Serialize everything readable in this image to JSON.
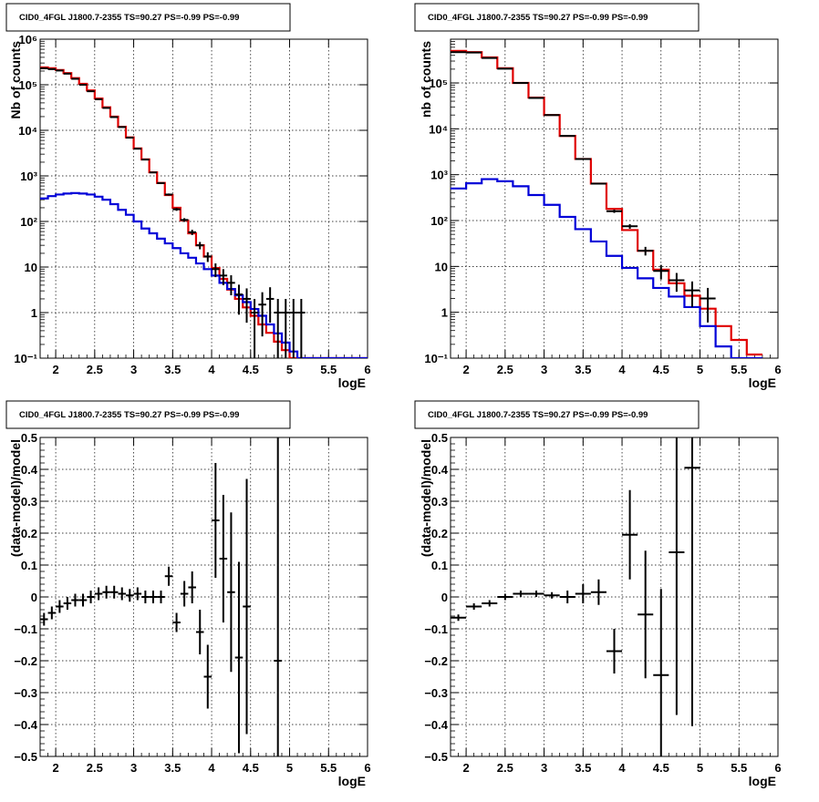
{
  "colors": {
    "data": "#000000",
    "total_model": "#e00000",
    "source_model": "#0000d8",
    "frame": "#000000",
    "grid": "#000000"
  },
  "chart_data": [
    {
      "type": "line",
      "title": "CID0_4FGL J1800.7-2355 TS=90.27 PS=-0.99 PS=-0.99",
      "xlabel": "logE",
      "ylabel": "Nb of counts",
      "xlim": [
        1.8,
        6
      ],
      "ylim": [
        0.1,
        1000000
      ],
      "yscale": "log",
      "grid": true,
      "x_ticks": [
        "2",
        "2.5",
        "3",
        "3.5",
        "4",
        "4.5",
        "5",
        "5.5",
        "6"
      ],
      "y_ticks": [
        "10⁻¹",
        "1",
        "10",
        "10²",
        "10³",
        "10⁴",
        "10⁵",
        "10⁶"
      ],
      "series": [
        {
          "kind": "step",
          "color": "#e00000",
          "x_edges": [
            1.8,
            1.9,
            2.0,
            2.1,
            2.2,
            2.3,
            2.4,
            2.5,
            2.6,
            2.7,
            2.8,
            2.9,
            3.0,
            3.1,
            3.2,
            3.3,
            3.4,
            3.5,
            3.6,
            3.7,
            3.8,
            3.9,
            4.0,
            4.1,
            4.2,
            4.3,
            4.4,
            4.5,
            4.6,
            4.7,
            4.8,
            4.9,
            5.0,
            5.1,
            5.2,
            5.3,
            5.4,
            5.5,
            5.6,
            5.7,
            5.8,
            5.9,
            6.0
          ],
          "values": [
            240000,
            230000,
            210000,
            180000,
            140000,
            105000,
            75000,
            50000,
            32000,
            20000,
            12000,
            7000,
            4000,
            2300,
            1200,
            700,
            380,
            200,
            105,
            55,
            30,
            17,
            9.5,
            5.5,
            3.2,
            2.0,
            1.3,
            0.85,
            0.55,
            0.36,
            0.23,
            0.15,
            0.1,
            0.1,
            0.1,
            0.1,
            0.1,
            0.1,
            0.1,
            0.1,
            0.1,
            0.1
          ]
        },
        {
          "kind": "step",
          "color": "#0000d8",
          "x_edges": [
            1.8,
            1.9,
            2.0,
            2.1,
            2.2,
            2.3,
            2.4,
            2.5,
            2.6,
            2.7,
            2.8,
            2.9,
            3.0,
            3.1,
            3.2,
            3.3,
            3.4,
            3.5,
            3.6,
            3.7,
            3.8,
            3.9,
            4.0,
            4.1,
            4.2,
            4.3,
            4.4,
            4.5,
            4.6,
            4.7,
            4.8,
            4.9,
            5.0,
            5.1,
            5.2,
            5.3,
            5.4,
            5.5,
            5.6,
            5.7,
            5.8,
            5.9,
            6.0
          ],
          "values": [
            320,
            360,
            390,
            410,
            420,
            410,
            390,
            350,
            300,
            240,
            180,
            140,
            100,
            70,
            55,
            42,
            33,
            26,
            20,
            16,
            12,
            9,
            6.5,
            4.5,
            3.3,
            2.4,
            1.7,
            1.2,
            0.85,
            0.55,
            0.35,
            0.22,
            0.14,
            0.1,
            0.1,
            0.1,
            0.1,
            0.1,
            0.1,
            0.1,
            0.1,
            0.1
          ]
        },
        {
          "kind": "points",
          "color": "#000000",
          "x": [
            1.85,
            1.95,
            2.05,
            2.15,
            2.25,
            2.35,
            2.45,
            2.55,
            2.65,
            2.75,
            2.85,
            2.95,
            3.05,
            3.15,
            3.25,
            3.35,
            3.45,
            3.55,
            3.65,
            3.75,
            3.85,
            3.95,
            4.05,
            4.15,
            4.25,
            4.35,
            4.45,
            4.55,
            4.65,
            4.75,
            4.85,
            4.95,
            5.05,
            5.15
          ],
          "y": [
            230000,
            220000,
            205000,
            175000,
            135000,
            100000,
            72000,
            48000,
            31000,
            19500,
            11800,
            6900,
            3950,
            2280,
            1190,
            695,
            390,
            185,
            108,
            58,
            30,
            17,
            9,
            6.5,
            4.5,
            2.5,
            2,
            1,
            1.5,
            2,
            1,
            1,
            1,
            1
          ],
          "xerr": 0.05,
          "yerr_low": [
            480,
            470,
            450,
            420,
            370,
            320,
            270,
            220,
            176,
            140,
            109,
            83,
            63,
            48,
            34,
            26,
            20,
            14,
            10,
            7.6,
            5.5,
            4.1,
            3,
            2.5,
            2.1,
            1.6,
            1.4,
            0.9,
            1.2,
            1.4,
            0.9,
            0.9,
            0.9,
            0.9
          ],
          "yerr_high": [
            480,
            470,
            450,
            420,
            370,
            320,
            270,
            220,
            176,
            140,
            109,
            83,
            63,
            48,
            34,
            26,
            20,
            14,
            10,
            7.6,
            5.5,
            4.1,
            3,
            2.5,
            2.1,
            1.6,
            1.4,
            1.0,
            1.3,
            1.6,
            1.0,
            1.0,
            1.0,
            1.0
          ]
        }
      ]
    },
    {
      "type": "line",
      "title": "CID0_4FGL J1800.7-2355 TS=90.27 PS=-0.99 PS=-0.99",
      "xlabel": "logE",
      "ylabel": "nb of counts",
      "xlim": [
        1.8,
        6
      ],
      "ylim": [
        0.1,
        900000
      ],
      "yscale": "log",
      "grid": true,
      "x_ticks": [
        "2",
        "2.5",
        "3",
        "3.5",
        "4",
        "4.5",
        "5",
        "5.5",
        "6"
      ],
      "y_ticks": [
        "10⁻¹",
        "1",
        "10",
        "10²",
        "10³",
        "10⁴",
        "10⁵"
      ],
      "series": [
        {
          "kind": "step",
          "color": "#e00000",
          "x_edges": [
            1.8,
            2.0,
            2.2,
            2.4,
            2.6,
            2.8,
            3.0,
            3.2,
            3.4,
            3.6,
            3.8,
            4.0,
            4.2,
            4.4,
            4.6,
            4.8,
            5.0,
            5.2,
            5.4,
            5.6,
            5.8
          ],
          "values": [
            500000,
            470000,
            360000,
            210000,
            100000,
            48000,
            20000,
            7000,
            2200,
            640,
            180,
            62,
            22,
            8.5,
            4.3,
            2.3,
            1.2,
            0.5,
            0.25,
            0.12
          ],
          "y_floor": 0.1
        },
        {
          "kind": "step",
          "color": "#0000d8",
          "x_edges": [
            1.8,
            2.0,
            2.2,
            2.4,
            2.6,
            2.8,
            3.0,
            3.2,
            3.4,
            3.6,
            3.8,
            4.0,
            4.2,
            4.4,
            4.6,
            4.8,
            5.0,
            5.2,
            5.4,
            5.6,
            5.8
          ],
          "values": [
            500,
            650,
            800,
            720,
            560,
            360,
            220,
            120,
            65,
            35,
            17,
            9.3,
            5.5,
            3.4,
            2.2,
            1.3,
            0.5,
            0.18,
            0.1,
            0.1
          ],
          "y_floor": 0.1
        },
        {
          "kind": "points",
          "color": "#000000",
          "x": [
            1.9,
            2.1,
            2.3,
            2.5,
            2.7,
            2.9,
            3.1,
            3.3,
            3.5,
            3.7,
            3.9,
            4.1,
            4.3,
            4.5,
            4.7,
            4.9,
            5.1
          ],
          "y": [
            470000,
            460000,
            350000,
            205000,
            100000,
            47000,
            20000,
            7000,
            2200,
            640,
            160,
            75,
            22,
            8,
            5,
            3,
            2
          ],
          "xerr": 0.1,
          "yerr_low": [
            690,
            680,
            590,
            450,
            320,
            220,
            140,
            84,
            47,
            25,
            13,
            8.7,
            4.7,
            2.8,
            2.2,
            1.7,
            1.4
          ],
          "yerr_high": [
            690,
            680,
            590,
            450,
            320,
            220,
            140,
            84,
            47,
            25,
            13,
            8.7,
            4.7,
            2.8,
            2.2,
            1.7,
            1.4
          ]
        }
      ]
    },
    {
      "type": "scatter",
      "title": "CID0_4FGL J1800.7-2355 TS=90.27 PS=-0.99 PS=-0.99",
      "xlabel": "logE",
      "ylabel": "(data-model)/model",
      "xlim": [
        1.8,
        6
      ],
      "ylim": [
        -0.5,
        0.5
      ],
      "grid": true,
      "x_ticks": [
        "2",
        "2.5",
        "3",
        "3.5",
        "4",
        "4.5",
        "5",
        "5.5",
        "6"
      ],
      "y_ticks": [
        "−0.5",
        "−0.4",
        "−0.3",
        "−0.2",
        "−0.1",
        "0",
        "0.1",
        "0.2",
        "0.3",
        "0.4",
        "0.5"
      ],
      "series": [
        {
          "kind": "points",
          "color": "#000000",
          "x": [
            1.85,
            1.95,
            2.05,
            2.15,
            2.25,
            2.35,
            2.45,
            2.55,
            2.65,
            2.75,
            2.85,
            2.95,
            3.05,
            3.15,
            3.25,
            3.35,
            3.45,
            3.55,
            3.65,
            3.75,
            3.85,
            3.95,
            4.05,
            4.15,
            4.25,
            4.35,
            4.45,
            4.85
          ],
          "y": [
            -0.07,
            -0.05,
            -0.03,
            -0.02,
            -0.01,
            -0.01,
            0.0,
            0.01,
            0.015,
            0.015,
            0.01,
            0.005,
            0.01,
            0.0,
            0.0,
            0.0,
            0.065,
            -0.08,
            0.01,
            0.03,
            -0.11,
            -0.25,
            0.24,
            0.12,
            0.015,
            -0.19,
            -0.03,
            -0.2
          ],
          "xerr": 0.05,
          "yerr": [
            0.02,
            0.02,
            0.02,
            0.02,
            0.02,
            0.02,
            0.02,
            0.02,
            0.02,
            0.02,
            0.02,
            0.02,
            0.02,
            0.02,
            0.02,
            0.02,
            0.03,
            0.03,
            0.04,
            0.05,
            0.07,
            0.1,
            0.18,
            0.2,
            0.25,
            0.3,
            0.4,
            0.7
          ]
        }
      ]
    },
    {
      "type": "scatter",
      "title": "CID0_4FGL J1800.7-2355 TS=90.27 PS=-0.99 PS=-0.99",
      "xlabel": "logE",
      "ylabel": "(data-model)/model",
      "xlim": [
        1.8,
        6
      ],
      "ylim": [
        -0.5,
        0.5
      ],
      "grid": true,
      "x_ticks": [
        "2",
        "2.5",
        "3",
        "3.5",
        "4",
        "4.5",
        "5",
        "5.5",
        "6"
      ],
      "y_ticks": [
        "−0.5",
        "−0.4",
        "−0.3",
        "−0.2",
        "−0.1",
        "0",
        "0.1",
        "0.2",
        "0.3",
        "0.4",
        "0.5"
      ],
      "series": [
        {
          "kind": "points",
          "color": "#000000",
          "x": [
            1.9,
            2.1,
            2.3,
            2.5,
            2.7,
            2.9,
            3.1,
            3.3,
            3.5,
            3.7,
            3.9,
            4.1,
            4.3,
            4.5,
            4.7,
            4.9
          ],
          "y": [
            -0.065,
            -0.03,
            -0.02,
            0.0,
            0.01,
            0.01,
            0.005,
            0.0,
            0.01,
            0.015,
            -0.17,
            0.195,
            -0.055,
            -0.245,
            0.14,
            0.405
          ],
          "xerr": 0.1,
          "yerr": [
            0.01,
            0.01,
            0.01,
            0.01,
            0.01,
            0.01,
            0.01,
            0.02,
            0.03,
            0.04,
            0.07,
            0.14,
            0.2,
            0.27,
            0.51,
            0.81
          ]
        }
      ]
    }
  ]
}
